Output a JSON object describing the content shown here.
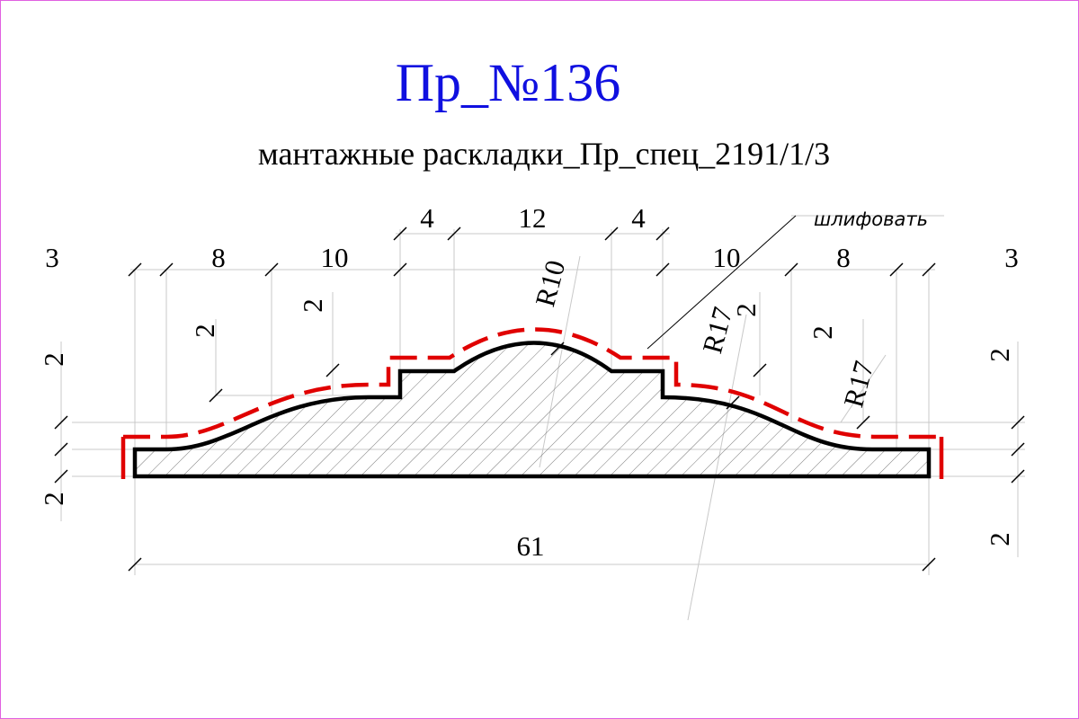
{
  "header": {
    "title": "Пр_№136",
    "subtitle": "мантажные раскладки_Пр_спец_2191/1/3"
  },
  "annotation": "шлифовать",
  "dimensions": {
    "top": [
      "3",
      "8",
      "10",
      "4",
      "12",
      "4",
      "10",
      "8",
      "3"
    ],
    "radii": [
      "R10",
      "R17",
      "R17"
    ],
    "vertical": [
      "2",
      "2",
      "2",
      "2",
      "2",
      "2",
      "2",
      "2"
    ],
    "overall": "61"
  }
}
